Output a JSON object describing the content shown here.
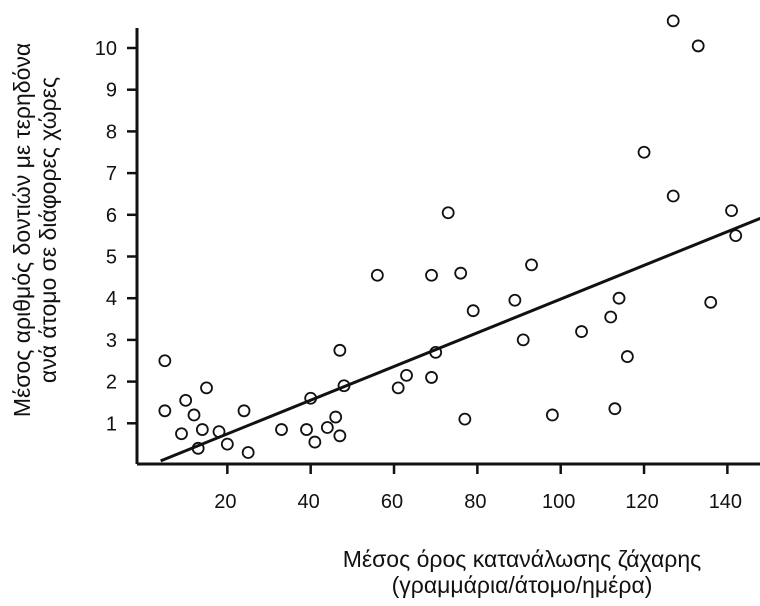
{
  "chart_data": {
    "type": "scatter",
    "title": "",
    "xlabel": [
      "Μέσος όρος κατανάλωσης ζάχαρης",
      "(γραμμάρια/άτομο/ημέρα)"
    ],
    "ylabel": [
      "Μέσος αριθμός δοντιών με τερηδόνα",
      "ανά άτομο σε διάφορες χώρες"
    ],
    "xlim": [
      0,
      150
    ],
    "ylim": [
      0,
      11
    ],
    "x_ticks": [
      20,
      40,
      60,
      80,
      100,
      120,
      140
    ],
    "y_ticks": [
      1,
      2,
      3,
      4,
      5,
      6,
      7,
      8,
      9,
      10
    ],
    "grid": false,
    "points": [
      {
        "x": 5,
        "y": 2.5
      },
      {
        "x": 5,
        "y": 1.3
      },
      {
        "x": 9,
        "y": 0.75
      },
      {
        "x": 10,
        "y": 1.55
      },
      {
        "x": 12,
        "y": 1.2
      },
      {
        "x": 13,
        "y": 0.4
      },
      {
        "x": 14,
        "y": 0.85
      },
      {
        "x": 15,
        "y": 1.85
      },
      {
        "x": 18,
        "y": 0.8
      },
      {
        "x": 20,
        "y": 0.5
      },
      {
        "x": 24,
        "y": 1.3
      },
      {
        "x": 25,
        "y": 0.3
      },
      {
        "x": 33,
        "y": 0.85
      },
      {
        "x": 39,
        "y": 0.85
      },
      {
        "x": 40,
        "y": 1.6
      },
      {
        "x": 41,
        "y": 0.55
      },
      {
        "x": 44,
        "y": 0.9
      },
      {
        "x": 46,
        "y": 1.15
      },
      {
        "x": 47,
        "y": 0.7
      },
      {
        "x": 47,
        "y": 2.75
      },
      {
        "x": 48,
        "y": 1.9
      },
      {
        "x": 56,
        "y": 4.55
      },
      {
        "x": 61,
        "y": 1.85
      },
      {
        "x": 63,
        "y": 2.15
      },
      {
        "x": 69,
        "y": 2.1
      },
      {
        "x": 69,
        "y": 4.55
      },
      {
        "x": 70,
        "y": 2.7
      },
      {
        "x": 73,
        "y": 6.05
      },
      {
        "x": 76,
        "y": 4.6
      },
      {
        "x": 77,
        "y": 1.1
      },
      {
        "x": 79,
        "y": 3.7
      },
      {
        "x": 89,
        "y": 3.95
      },
      {
        "x": 91,
        "y": 3.0
      },
      {
        "x": 93,
        "y": 4.8
      },
      {
        "x": 98,
        "y": 1.2
      },
      {
        "x": 105,
        "y": 3.2
      },
      {
        "x": 112,
        "y": 3.55
      },
      {
        "x": 113,
        "y": 1.35
      },
      {
        "x": 114,
        "y": 4.0
      },
      {
        "x": 116,
        "y": 2.6
      },
      {
        "x": 120,
        "y": 7.5
      },
      {
        "x": 127,
        "y": 6.45
      },
      {
        "x": 127,
        "y": 10.65
      },
      {
        "x": 133,
        "y": 10.05
      },
      {
        "x": 136,
        "y": 3.9
      },
      {
        "x": 141,
        "y": 6.1
      },
      {
        "x": 142,
        "y": 5.5
      }
    ],
    "trend_line": {
      "x": [
        4,
        150
      ],
      "y": [
        0.1,
        6.0
      ]
    },
    "colors": {
      "axis": "#111111",
      "line": "#111111",
      "marker_fill": "#ffffff",
      "marker_stroke": "#111111"
    }
  }
}
